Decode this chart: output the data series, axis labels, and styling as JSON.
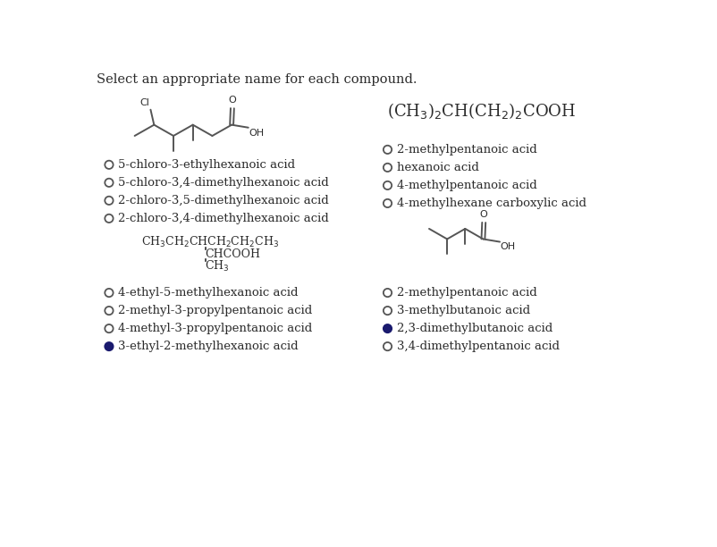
{
  "title": "Select an appropriate name for each compound.",
  "bg_color": "#ffffff",
  "text_color": "#2b2b2b",
  "radio_color": "#555555",
  "filled_radio_color": "#1a1a6e",
  "q1": {
    "options": [
      {
        "text": "5-chloro-3-ethylhexanoic acid",
        "selected": false
      },
      {
        "text": "5-chloro-3,4-dimethylhexanoic acid",
        "selected": false
      },
      {
        "text": "2-chloro-3,5-dimethylhexanoic acid",
        "selected": false
      },
      {
        "text": "2-chloro-3,4-dimethylhexanoic acid",
        "selected": false
      }
    ]
  },
  "q2": {
    "options": [
      {
        "text": "2-methylpentanoic acid",
        "selected": false
      },
      {
        "text": "hexanoic acid",
        "selected": false
      },
      {
        "text": "4-methylpentanoic acid",
        "selected": false
      },
      {
        "text": "4-methylhexane carboxylic acid",
        "selected": false
      }
    ]
  },
  "q3": {
    "options": [
      {
        "text": "4-ethyl-5-methylhexanoic acid",
        "selected": false
      },
      {
        "text": "2-methyl-3-propylpentanoic acid",
        "selected": false
      },
      {
        "text": "4-methyl-3-propylpentanoic acid",
        "selected": false
      },
      {
        "text": "3-ethyl-2-methylhexanoic acid",
        "selected": true
      }
    ]
  },
  "q4": {
    "options": [
      {
        "text": "2-methylpentanoic acid",
        "selected": false
      },
      {
        "text": "3-methylbutanoic acid",
        "selected": false
      },
      {
        "text": "2,3-dimethylbutanoic acid",
        "selected": true
      },
      {
        "text": "3,4-dimethylpentanoic acid",
        "selected": false
      }
    ]
  }
}
